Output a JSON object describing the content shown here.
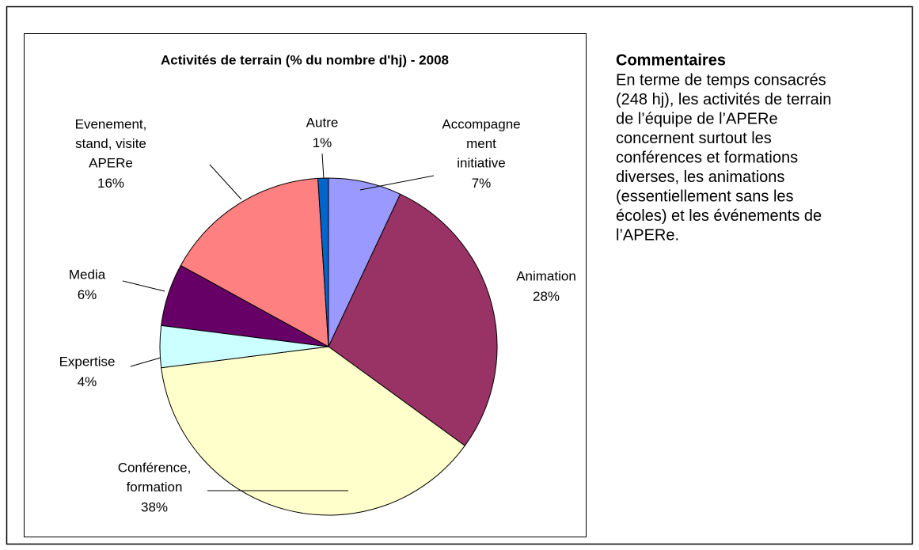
{
  "chart_data": {
    "type": "pie",
    "title": "Activités de terrain (% du nombre d'hj)  - 2008",
    "categories": [
      [
        "Accompagne",
        "ment",
        "initiative"
      ],
      [
        "Animation"
      ],
      [
        "Conférence,",
        "formation"
      ],
      [
        "Expertise"
      ],
      [
        "Media"
      ],
      [
        "Evenement,",
        "stand, visite",
        "APERe"
      ],
      [
        "Autre"
      ]
    ],
    "values": [
      7,
      28,
      38,
      4,
      6,
      16,
      1
    ],
    "value_labels": [
      "7%",
      "28%",
      "38%",
      "4%",
      "6%",
      "16%",
      "1%"
    ],
    "colors": [
      "#9999ff",
      "#993366",
      "#ffffcc",
      "#ccffff",
      "#660066",
      "#ff8080",
      "#0066cc"
    ]
  },
  "comment": {
    "title": "Commentaires",
    "lines": [
      "En terme de temps consacrés",
      "(248 hj), les activités de terrain",
      "de l’équipe de l’APERe",
      "concernent surtout  les",
      "conférences et formations",
      "diverses, les animations",
      "(essentiellement sans les",
      "écoles) et les événements de",
      "l’APERe."
    ]
  }
}
